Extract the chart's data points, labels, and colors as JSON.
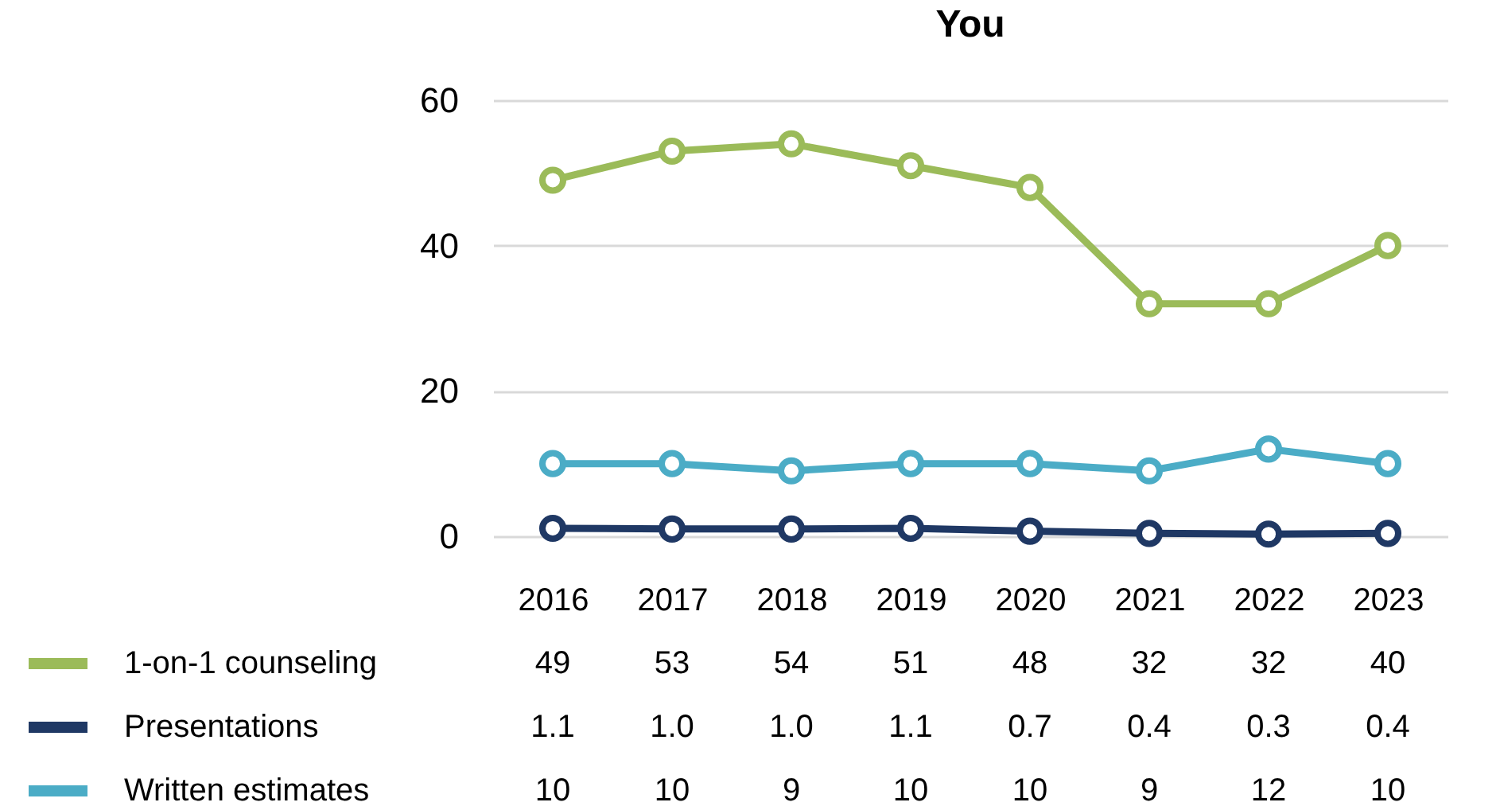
{
  "chart_data": {
    "type": "line",
    "title": "You",
    "categories": [
      "2016",
      "2017",
      "2018",
      "2019",
      "2020",
      "2021",
      "2022",
      "2023"
    ],
    "ylim": [
      0,
      60
    ],
    "yticks": [
      0,
      20,
      40,
      60
    ],
    "grid": "y",
    "legend": "bottom left",
    "marker": "circle",
    "series": [
      {
        "name": "1-on-1 counseling",
        "color": "#9bbb59",
        "values": [
          49,
          53,
          54,
          51,
          48,
          32,
          32,
          40
        ],
        "value_labels": [
          "49",
          "53",
          "54",
          "51",
          "48",
          "32",
          "32",
          "40"
        ]
      },
      {
        "name": "Presentations",
        "color": "#1f3864",
        "values": [
          1.1,
          1.0,
          1.0,
          1.1,
          0.7,
          0.4,
          0.3,
          0.4
        ],
        "value_labels": [
          "1.1",
          "1.0",
          "1.0",
          "1.1",
          "0.7",
          "0.4",
          "0.3",
          "0.4"
        ]
      },
      {
        "name": "Written estimates",
        "color": "#4bacc6",
        "values": [
          10,
          10,
          9,
          10,
          10,
          9,
          12,
          10
        ],
        "value_labels": [
          "10",
          "10",
          "9",
          "10",
          "10",
          "9",
          "12",
          "10"
        ]
      }
    ]
  }
}
